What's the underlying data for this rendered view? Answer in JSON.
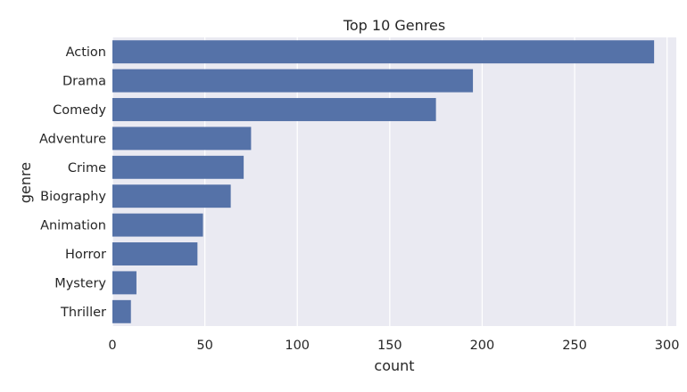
{
  "chart_data": {
    "type": "bar",
    "orientation": "horizontal",
    "title": "Top 10 Genres",
    "xlabel": "count",
    "ylabel": "genre",
    "categories": [
      "Action",
      "Drama",
      "Comedy",
      "Adventure",
      "Crime",
      "Biography",
      "Animation",
      "Horror",
      "Mystery",
      "Thriller"
    ],
    "values": [
      293,
      195,
      175,
      75,
      71,
      64,
      49,
      46,
      13,
      10
    ],
    "xlim": [
      0,
      305
    ],
    "xticks": [
      0,
      50,
      100,
      150,
      200,
      250,
      300
    ],
    "grid": true,
    "bar_color": "#5572a8",
    "plot_background": "#eaeaf2",
    "grid_color": "#ffffff"
  }
}
